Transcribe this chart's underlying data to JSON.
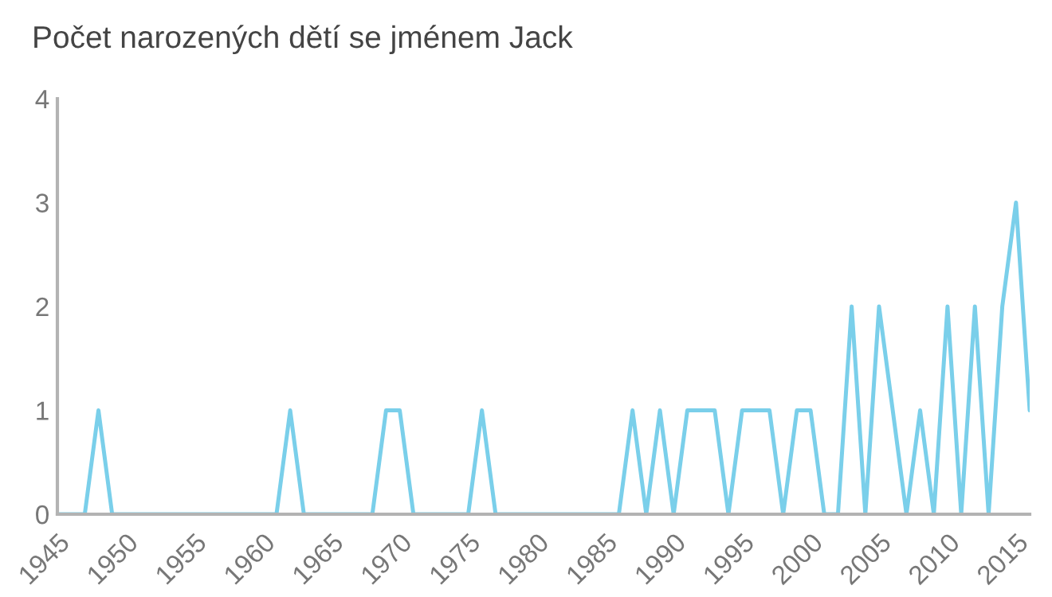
{
  "chart_data": {
    "type": "line",
    "title": "Počet narozených dětí se jménem Jack",
    "x": [
      1945,
      1946,
      1947,
      1948,
      1949,
      1950,
      1951,
      1952,
      1953,
      1954,
      1955,
      1956,
      1957,
      1958,
      1959,
      1960,
      1961,
      1962,
      1963,
      1964,
      1965,
      1966,
      1967,
      1968,
      1969,
      1970,
      1971,
      1972,
      1973,
      1974,
      1975,
      1976,
      1977,
      1978,
      1979,
      1980,
      1981,
      1982,
      1983,
      1984,
      1985,
      1986,
      1987,
      1988,
      1989,
      1990,
      1991,
      1992,
      1993,
      1994,
      1995,
      1996,
      1997,
      1998,
      1999,
      2000,
      2001,
      2002,
      2003,
      2004,
      2005,
      2006,
      2007,
      2008,
      2009,
      2010,
      2011,
      2012,
      2013,
      2014,
      2015,
      2016
    ],
    "series": [
      {
        "color": "#7acfea",
        "values": [
          0,
          0,
          0,
          1,
          0,
          0,
          0,
          0,
          0,
          0,
          0,
          0,
          0,
          0,
          0,
          0,
          0,
          1,
          0,
          0,
          0,
          0,
          0,
          0,
          1,
          1,
          0,
          0,
          0,
          0,
          0,
          1,
          0,
          0,
          0,
          0,
          0,
          0,
          0,
          0,
          0,
          0,
          1,
          0,
          1,
          0,
          1,
          1,
          1,
          0,
          1,
          1,
          1,
          0,
          1,
          1,
          0,
          0,
          2,
          0,
          2,
          1,
          0,
          1,
          0,
          2,
          0,
          2,
          0,
          2,
          3,
          1
        ]
      }
    ],
    "xlim": [
      1945,
      2016
    ],
    "xticks": [
      1945,
      1950,
      1955,
      1960,
      1965,
      1970,
      1975,
      1980,
      1985,
      1990,
      1995,
      2000,
      2005,
      2010,
      2015
    ],
    "ylim": [
      0,
      4
    ],
    "yticks": [
      0,
      1,
      2,
      3,
      4
    ],
    "grid": false,
    "legend": false,
    "marker": "none",
    "line_style": "solid"
  }
}
